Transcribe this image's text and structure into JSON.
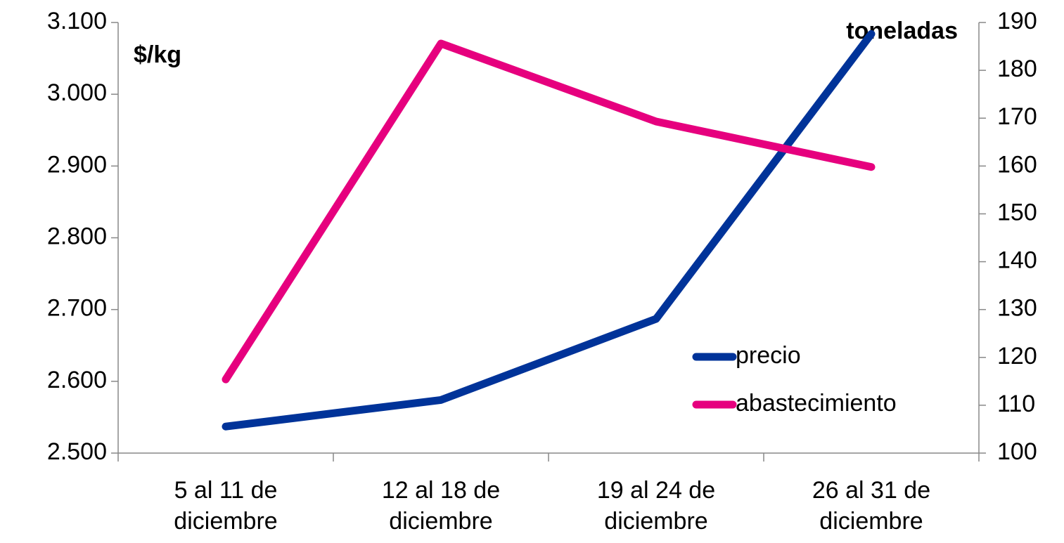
{
  "chart_data": {
    "type": "line",
    "categories": [
      "5 al 11 de diciembre",
      "12 al 18 de diciembre",
      "19 al 24 de diciembre",
      "26 al 31 de diciembre"
    ],
    "ylabel": "$/kg",
    "y2label": "toneladas",
    "ylim": [
      2500,
      3100
    ],
    "yticks": [
      {
        "value": 2500,
        "label": "2.500"
      },
      {
        "value": 2600,
        "label": "2.600"
      },
      {
        "value": 2700,
        "label": "2.700"
      },
      {
        "value": 2800,
        "label": "2.800"
      },
      {
        "value": 2900,
        "label": "2.900"
      },
      {
        "value": 3000,
        "label": "3.000"
      },
      {
        "value": 3100,
        "label": "3.100"
      }
    ],
    "y2lim": [
      100,
      190
    ],
    "y2ticks": [
      100,
      110,
      120,
      130,
      140,
      150,
      160,
      170,
      180,
      190
    ],
    "legend": "right",
    "series": [
      {
        "name": "precio",
        "color": "#003399",
        "values": [
          2537,
          2574,
          2687,
          3084
        ]
      },
      {
        "name": "abastecimiento",
        "color": "#e6007e",
        "axis": "y2",
        "values": [
          115.4,
          185.6,
          169.3,
          159.8
        ]
      }
    ]
  }
}
